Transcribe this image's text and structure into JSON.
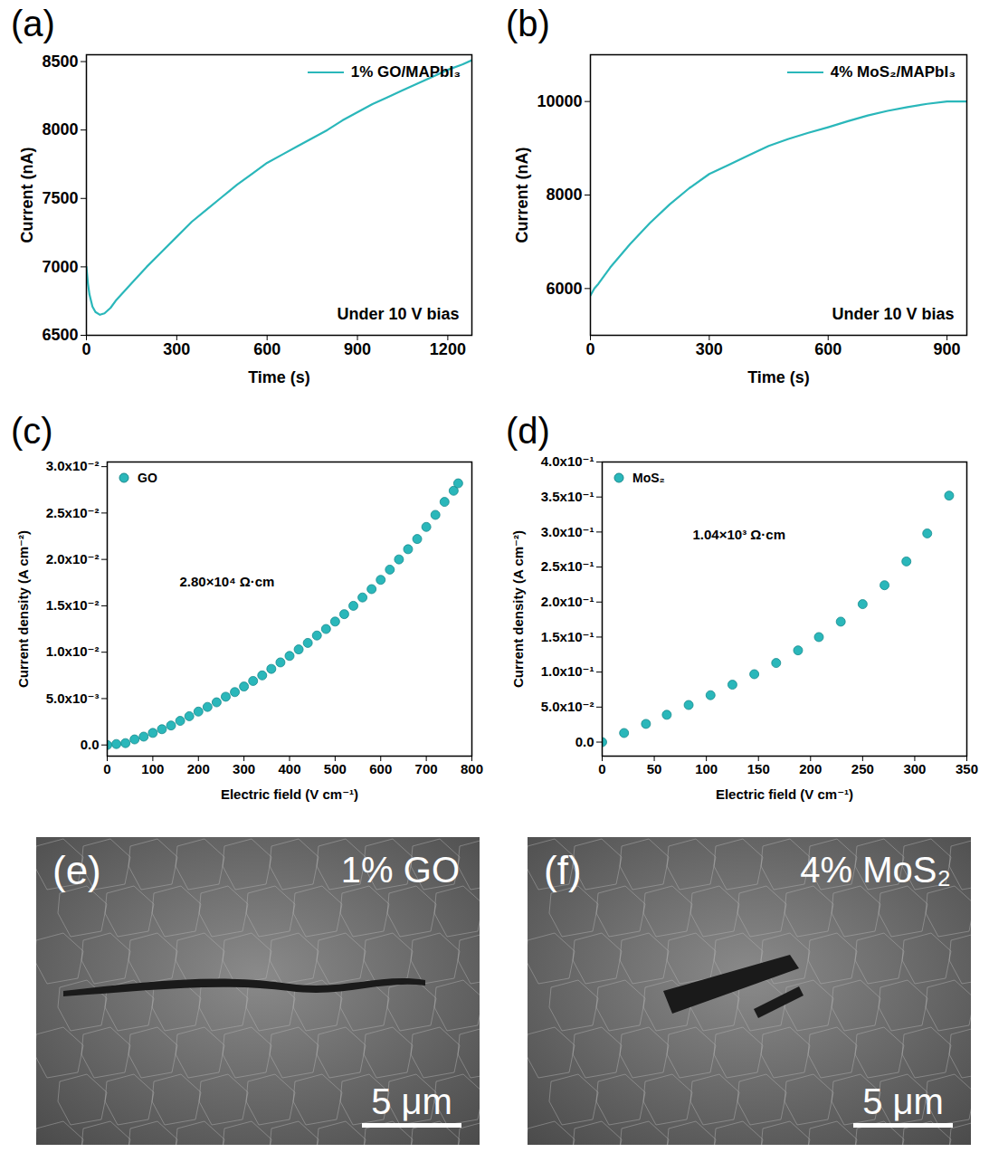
{
  "chart_data": [
    {
      "panel": "(a)",
      "type": "line",
      "x_label": "Time (s)",
      "y_label": "Current (nA)",
      "annotation": "Under 10 V bias",
      "legend": "top-right",
      "grid": false,
      "line_style": "solid",
      "xlim": [
        0,
        1280
      ],
      "xticks": [
        0,
        300,
        600,
        900,
        1200
      ],
      "ylim": [
        6500,
        8550
      ],
      "yticks": [
        6500,
        7000,
        7500,
        8000,
        8500
      ],
      "x": [
        0,
        5,
        10,
        20,
        30,
        45,
        60,
        80,
        100,
        150,
        200,
        250,
        300,
        350,
        400,
        450,
        500,
        550,
        600,
        650,
        700,
        750,
        800,
        850,
        900,
        950,
        1000,
        1050,
        1100,
        1150,
        1200,
        1250,
        1280
      ],
      "series": [
        {
          "name": "1% GO/MAPbI₃",
          "color": "#2ab7ba",
          "values": [
            7000,
            6880,
            6800,
            6710,
            6670,
            6650,
            6660,
            6700,
            6760,
            6880,
            7000,
            7110,
            7220,
            7330,
            7420,
            7510,
            7600,
            7680,
            7760,
            7820,
            7880,
            7940,
            8000,
            8070,
            8130,
            8190,
            8240,
            8290,
            8340,
            8390,
            8440,
            8480,
            8510
          ]
        }
      ]
    },
    {
      "panel": "(b)",
      "type": "line",
      "x_label": "Time (s)",
      "y_label": "Current (nA)",
      "annotation": "Under 10 V bias",
      "legend": "top-right",
      "grid": false,
      "line_style": "solid",
      "xlim": [
        0,
        950
      ],
      "xticks": [
        0,
        300,
        600,
        900
      ],
      "ylim": [
        5000,
        11000
      ],
      "yticks": [
        6000,
        8000,
        10000
      ],
      "x": [
        0,
        10,
        20,
        50,
        100,
        150,
        200,
        250,
        300,
        350,
        400,
        450,
        500,
        550,
        600,
        650,
        700,
        750,
        800,
        850,
        900,
        950
      ],
      "series": [
        {
          "name": "4% MoS₂/MAPbI₃",
          "color": "#2ab7ba",
          "values": [
            5850,
            6000,
            6100,
            6450,
            6950,
            7400,
            7800,
            8150,
            8450,
            8650,
            8850,
            9050,
            9200,
            9330,
            9450,
            9580,
            9700,
            9800,
            9880,
            9950,
            10000,
            10000
          ]
        }
      ]
    },
    {
      "panel": "(c)",
      "type": "scatter",
      "x_label": "Electric field (V cm⁻¹)",
      "y_label": "Current density (A cm⁻²)",
      "annotation": "2.80×10⁴ Ω·cm",
      "legend": "top-left",
      "grid": false,
      "marker": "circle",
      "xlim": [
        0,
        800
      ],
      "xticks": [
        0,
        100,
        200,
        300,
        400,
        500,
        600,
        700,
        800
      ],
      "ylim": [
        -0.0012,
        0.0305
      ],
      "yticks": [
        {
          "value": 0,
          "label": "0.0"
        },
        {
          "value": 0.005,
          "label": "5.0x10⁻³"
        },
        {
          "value": 0.01,
          "label": "1.0x10⁻²"
        },
        {
          "value": 0.015,
          "label": "1.5x10⁻²"
        },
        {
          "value": 0.02,
          "label": "2.0x10⁻²"
        },
        {
          "value": 0.025,
          "label": "2.5x10⁻²"
        },
        {
          "value": 0.03,
          "label": "3.0x10⁻²"
        }
      ],
      "x": [
        0,
        20,
        40,
        60,
        80,
        100,
        120,
        140,
        160,
        180,
        200,
        220,
        240,
        260,
        280,
        300,
        320,
        340,
        360,
        380,
        400,
        420,
        440,
        460,
        480,
        500,
        520,
        540,
        560,
        580,
        600,
        620,
        640,
        660,
        680,
        700,
        720,
        740,
        760,
        770
      ],
      "series": [
        {
          "name": "GO",
          "color": "#2ab7ba",
          "values": [
            0,
            0.0001,
            0.0002,
            0.0006,
            0.0009,
            0.0013,
            0.0017,
            0.0021,
            0.0026,
            0.0031,
            0.0036,
            0.0041,
            0.0046,
            0.0052,
            0.0057,
            0.0063,
            0.0069,
            0.0075,
            0.0082,
            0.0089,
            0.0096,
            0.0103,
            0.011,
            0.0118,
            0.0125,
            0.0133,
            0.0141,
            0.015,
            0.0159,
            0.0168,
            0.0178,
            0.0189,
            0.02,
            0.0211,
            0.0222,
            0.0235,
            0.0248,
            0.0262,
            0.0274,
            0.0282
          ]
        }
      ]
    },
    {
      "panel": "(d)",
      "type": "scatter",
      "x_label": "Electric field (V cm⁻¹)",
      "y_label": "Current density (A cm⁻²)",
      "annotation": "1.04×10³ Ω·cm",
      "legend": "top-left",
      "grid": false,
      "marker": "circle",
      "xlim": [
        0,
        350
      ],
      "xticks": [
        0,
        50,
        100,
        150,
        200,
        250,
        300,
        350
      ],
      "ylim": [
        -0.02,
        0.4
      ],
      "yticks": [
        {
          "value": 0,
          "label": "0.0"
        },
        {
          "value": 0.05,
          "label": "5.0x10⁻²"
        },
        {
          "value": 0.1,
          "label": "1.0x10⁻¹"
        },
        {
          "value": 0.15,
          "label": "1.5x10⁻¹"
        },
        {
          "value": 0.2,
          "label": "2.0x10⁻¹"
        },
        {
          "value": 0.25,
          "label": "2.5x10⁻¹"
        },
        {
          "value": 0.3,
          "label": "3.0x10⁻¹"
        },
        {
          "value": 0.35,
          "label": "3.5x10⁻¹"
        },
        {
          "value": 0.4,
          "label": "4.0x10⁻¹"
        }
      ],
      "x": [
        0,
        21,
        42,
        62,
        83,
        104,
        125,
        146,
        167,
        188,
        208,
        229,
        250,
        271,
        292,
        312,
        333
      ],
      "series": [
        {
          "name": "MoS₂",
          "color": "#2ab7ba",
          "values": [
            0,
            0.013,
            0.026,
            0.039,
            0.053,
            0.067,
            0.082,
            0.097,
            0.113,
            0.131,
            0.15,
            0.172,
            0.197,
            0.224,
            0.258,
            0.298,
            0.352
          ]
        }
      ]
    }
  ],
  "images": [
    {
      "panel": "(e)",
      "label": "1% GO",
      "scale_bar": "5 μm"
    },
    {
      "panel": "(f)",
      "label": "4% MoS₂",
      "scale_bar": "5 μm"
    }
  ]
}
